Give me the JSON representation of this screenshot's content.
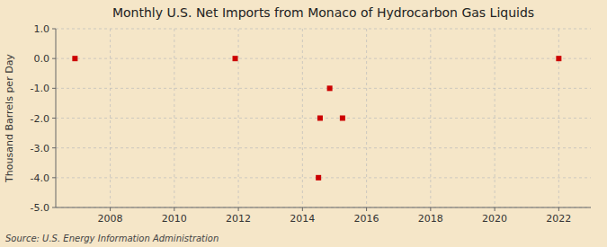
{
  "chart_data": {
    "type": "scatter",
    "title": "Monthly U.S. Net Imports from Monaco of Hydrocarbon Gas Liquids",
    "y_label": "Thousand Barrels per Day",
    "source": "Source: U.S. Energy Information Administration",
    "x": [
      2006.9,
      2011.9,
      2014.5,
      2014.55,
      2014.85,
      2015.25,
      2022.0
    ],
    "y": [
      0.0,
      0.0,
      -4.0,
      -2.0,
      -1.0,
      -2.0,
      0.0
    ],
    "color": "#cc0000",
    "marker": "square",
    "grid": true,
    "xlim": [
      2006.3,
      2023.0
    ],
    "xticks": [
      2008,
      2010,
      2012,
      2014,
      2016,
      2018,
      2020,
      2022
    ],
    "ylim": [
      -5.0,
      1.0
    ],
    "yticks": [
      {
        "value": 1.0,
        "label": "1.0"
      },
      {
        "value": 0.0,
        "label": "0.0"
      },
      {
        "value": -1.0,
        "label": "-1.0"
      },
      {
        "value": -2.0,
        "label": "-2.0"
      },
      {
        "value": -3.0,
        "label": "-3.0"
      },
      {
        "value": -4.0,
        "label": "-4.0"
      },
      {
        "value": -5.0,
        "label": "-5.0"
      }
    ]
  }
}
